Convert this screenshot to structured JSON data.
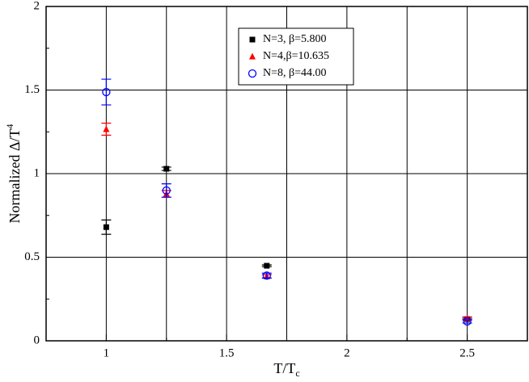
{
  "chart_data": {
    "type": "scatter",
    "xlabel": {
      "text": "T/T",
      "sub": "c"
    },
    "ylabel": {
      "text": "Normalized Δ/T",
      "sup": "4"
    },
    "xlim": [
      0.75,
      2.75
    ],
    "ylim": [
      0,
      2
    ],
    "xticks": [
      1,
      1.5,
      2,
      2.5
    ],
    "xminor": [
      1.25,
      1.75,
      2.25
    ],
    "yticks": [
      0,
      0.5,
      1,
      1.5,
      2
    ],
    "yminor": [
      0.25,
      0.75,
      1.25,
      1.75
    ],
    "grid": true,
    "legend": "top-center",
    "series": [
      {
        "name": "N=3, β=5.800",
        "color": "#000000",
        "marker": "square",
        "x": [
          1,
          1.25,
          1.667,
          2.5
        ],
        "values": [
          0.68,
          1.029,
          0.449,
          0.13
        ],
        "errors": [
          0.043,
          0.01,
          0.005,
          0.005
        ]
      },
      {
        "name": "N=4,β=10.635",
        "color": "#ff0000",
        "marker": "triangle",
        "x": [
          1,
          1.25,
          1.667,
          2.5
        ],
        "values": [
          1.266,
          0.879,
          0.386,
          0.135
        ],
        "errors": [
          0.036,
          0.02,
          0.01,
          0.008
        ]
      },
      {
        "name": "N=8, β=44.00",
        "color": "#0000ff",
        "marker": "circle",
        "x": [
          1,
          1.25,
          1.667,
          2.5
        ],
        "values": [
          1.488,
          0.899,
          0.39,
          0.116
        ],
        "errors": [
          0.077,
          0.04,
          0.015,
          0.01
        ]
      }
    ]
  }
}
